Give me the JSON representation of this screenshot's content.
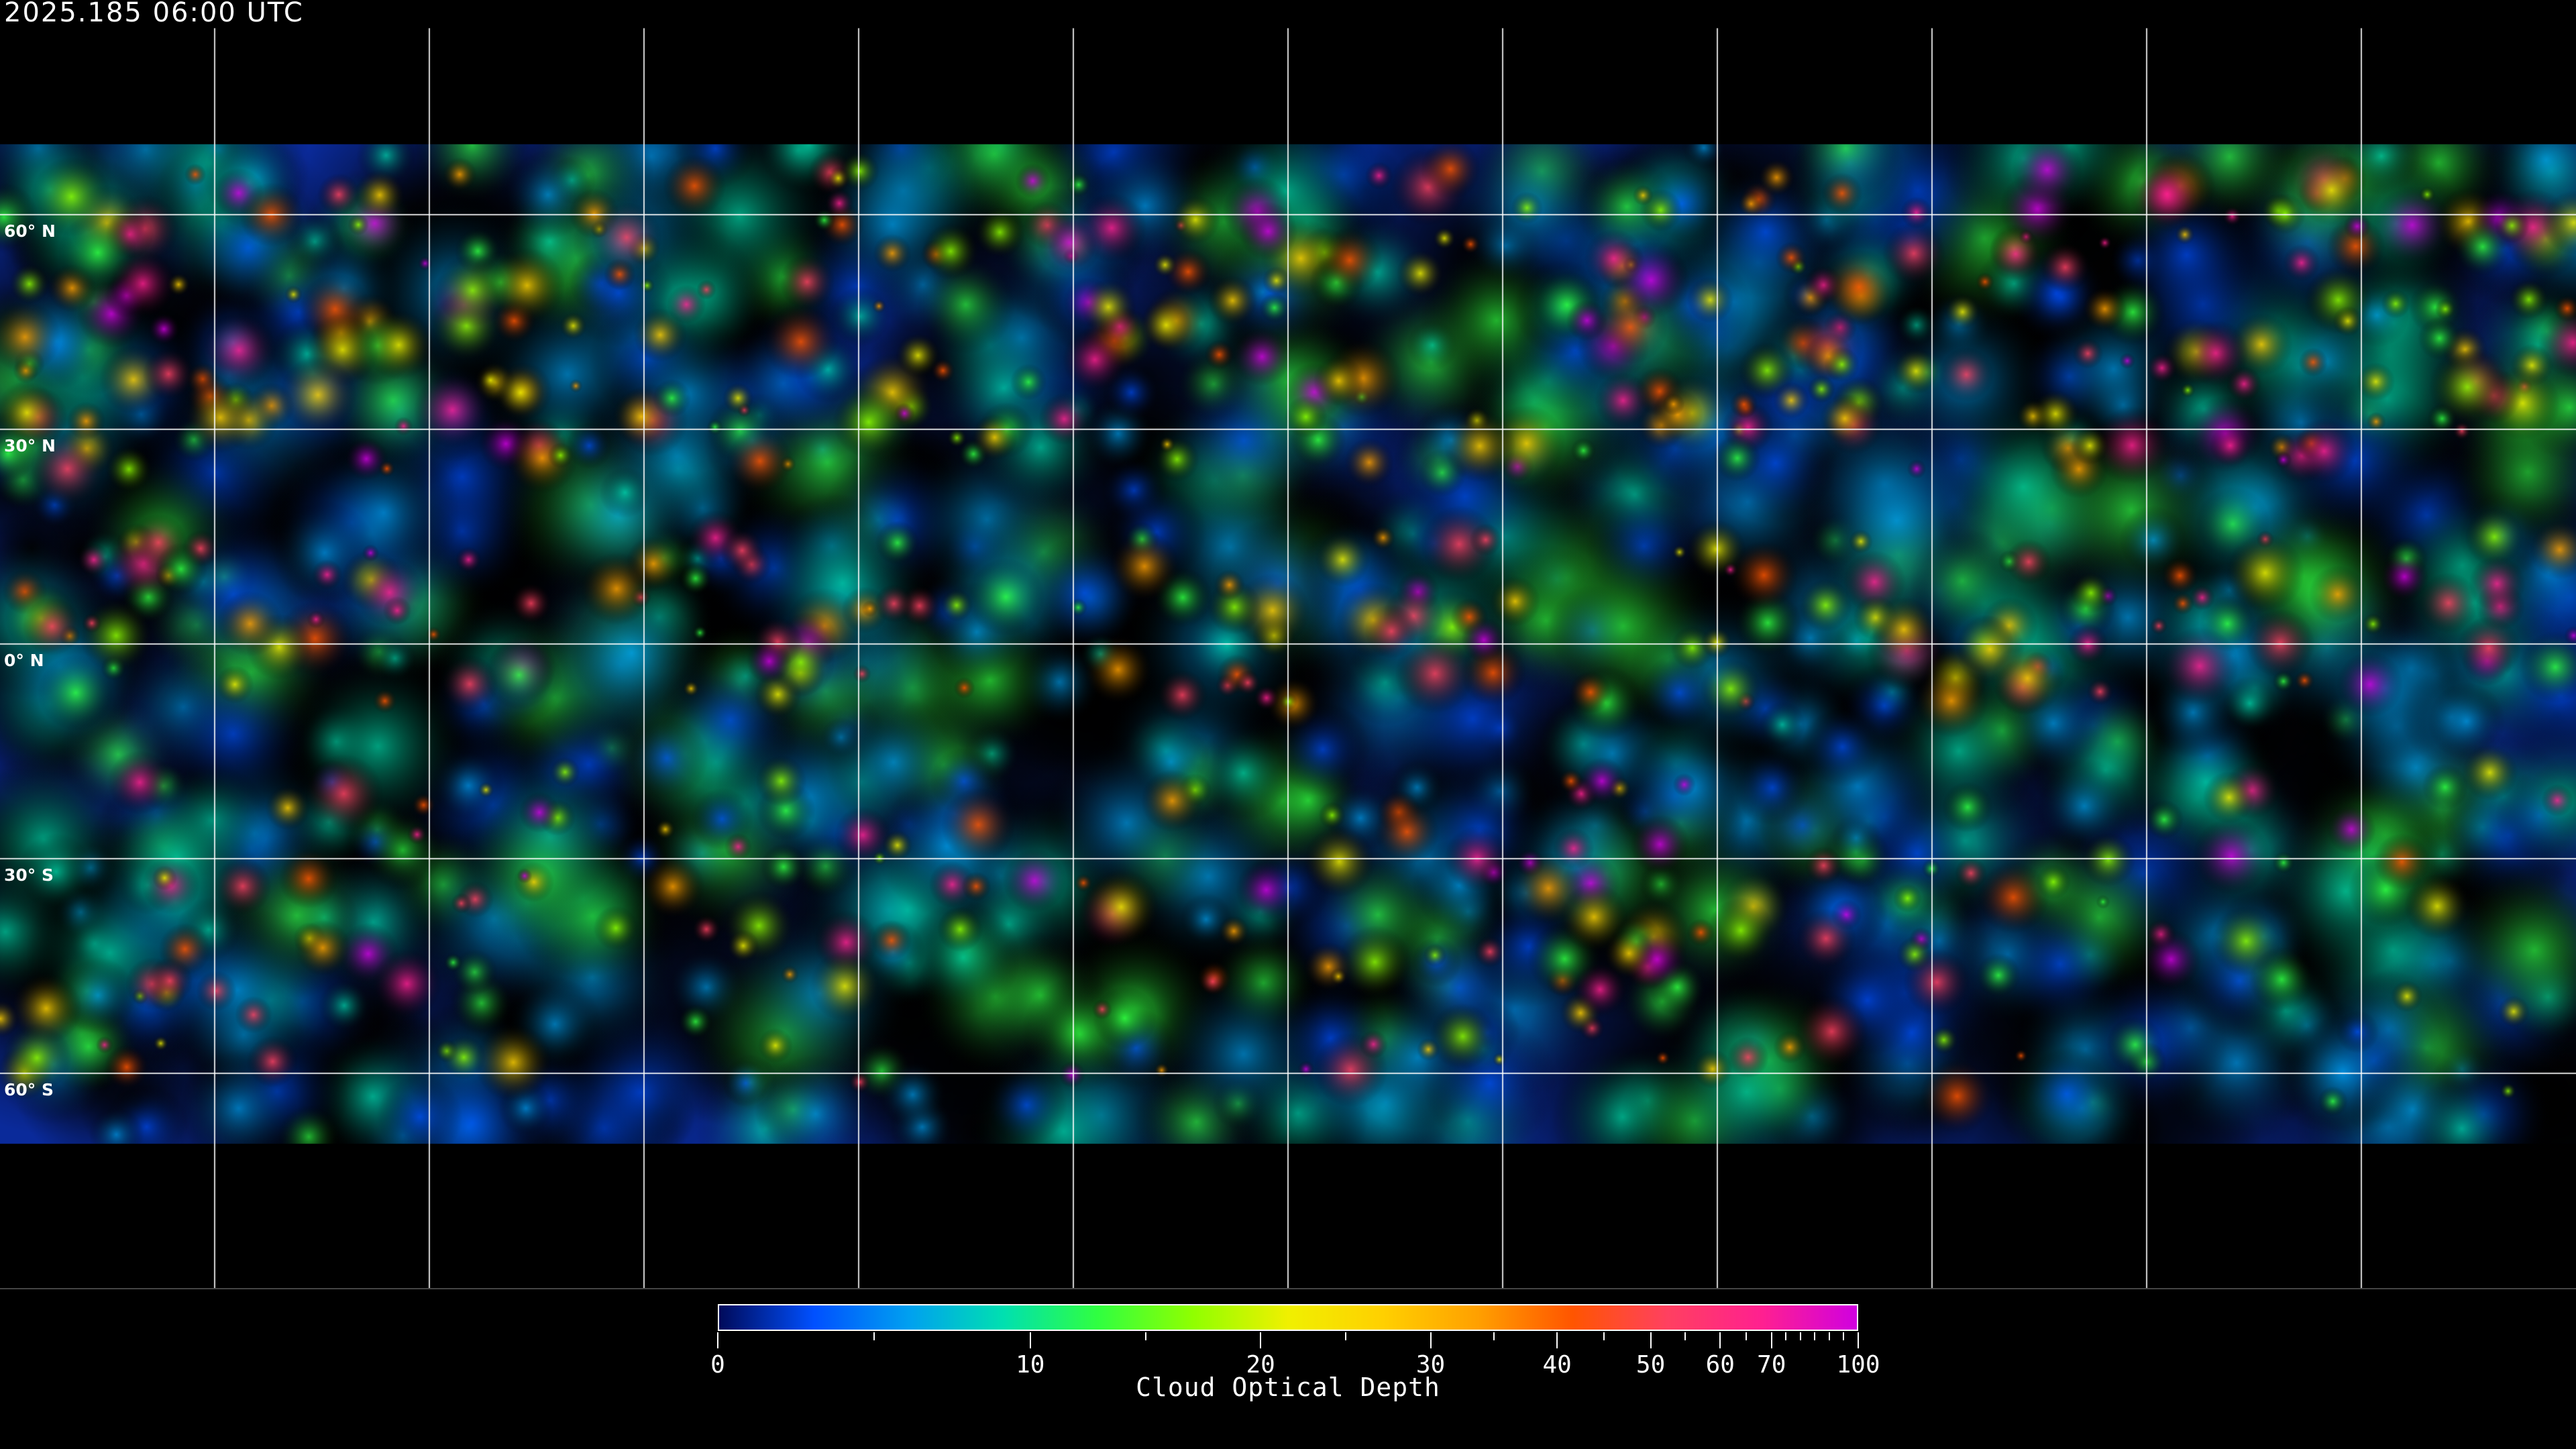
{
  "title": "2025.185 06:00 UTC",
  "map": {
    "projection": "equirectangular",
    "graticule_spacing_deg": 30,
    "lat_labels": [
      "60° N",
      "30° N",
      "0° N",
      "30° S",
      "60° S"
    ],
    "lat_values": [
      60,
      30,
      0,
      -30,
      -60
    ],
    "grid_color": "#ffffff",
    "coastline_color": "#ffffff",
    "background": "#000000"
  },
  "colorbar": {
    "label": "Cloud Optical Depth",
    "range": [
      0,
      100
    ],
    "tick_values": [
      0,
      10,
      20,
      30,
      40,
      50,
      60,
      70,
      100
    ],
    "tick_labels": [
      "0",
      "10",
      "20",
      "30",
      "40",
      "50",
      "60",
      "70",
      "100"
    ],
    "minor_tick_values": [
      5,
      15,
      25,
      35,
      45,
      55,
      65,
      75,
      80,
      85,
      90,
      95
    ],
    "colors": [
      "#000a5a",
      "#0050ff",
      "#00a0f0",
      "#00e0b0",
      "#30ff40",
      "#90ff00",
      "#f0f000",
      "#ffd000",
      "#ffa000",
      "#ff5500",
      "#ff4060",
      "#ff2090",
      "#d000e0"
    ]
  }
}
